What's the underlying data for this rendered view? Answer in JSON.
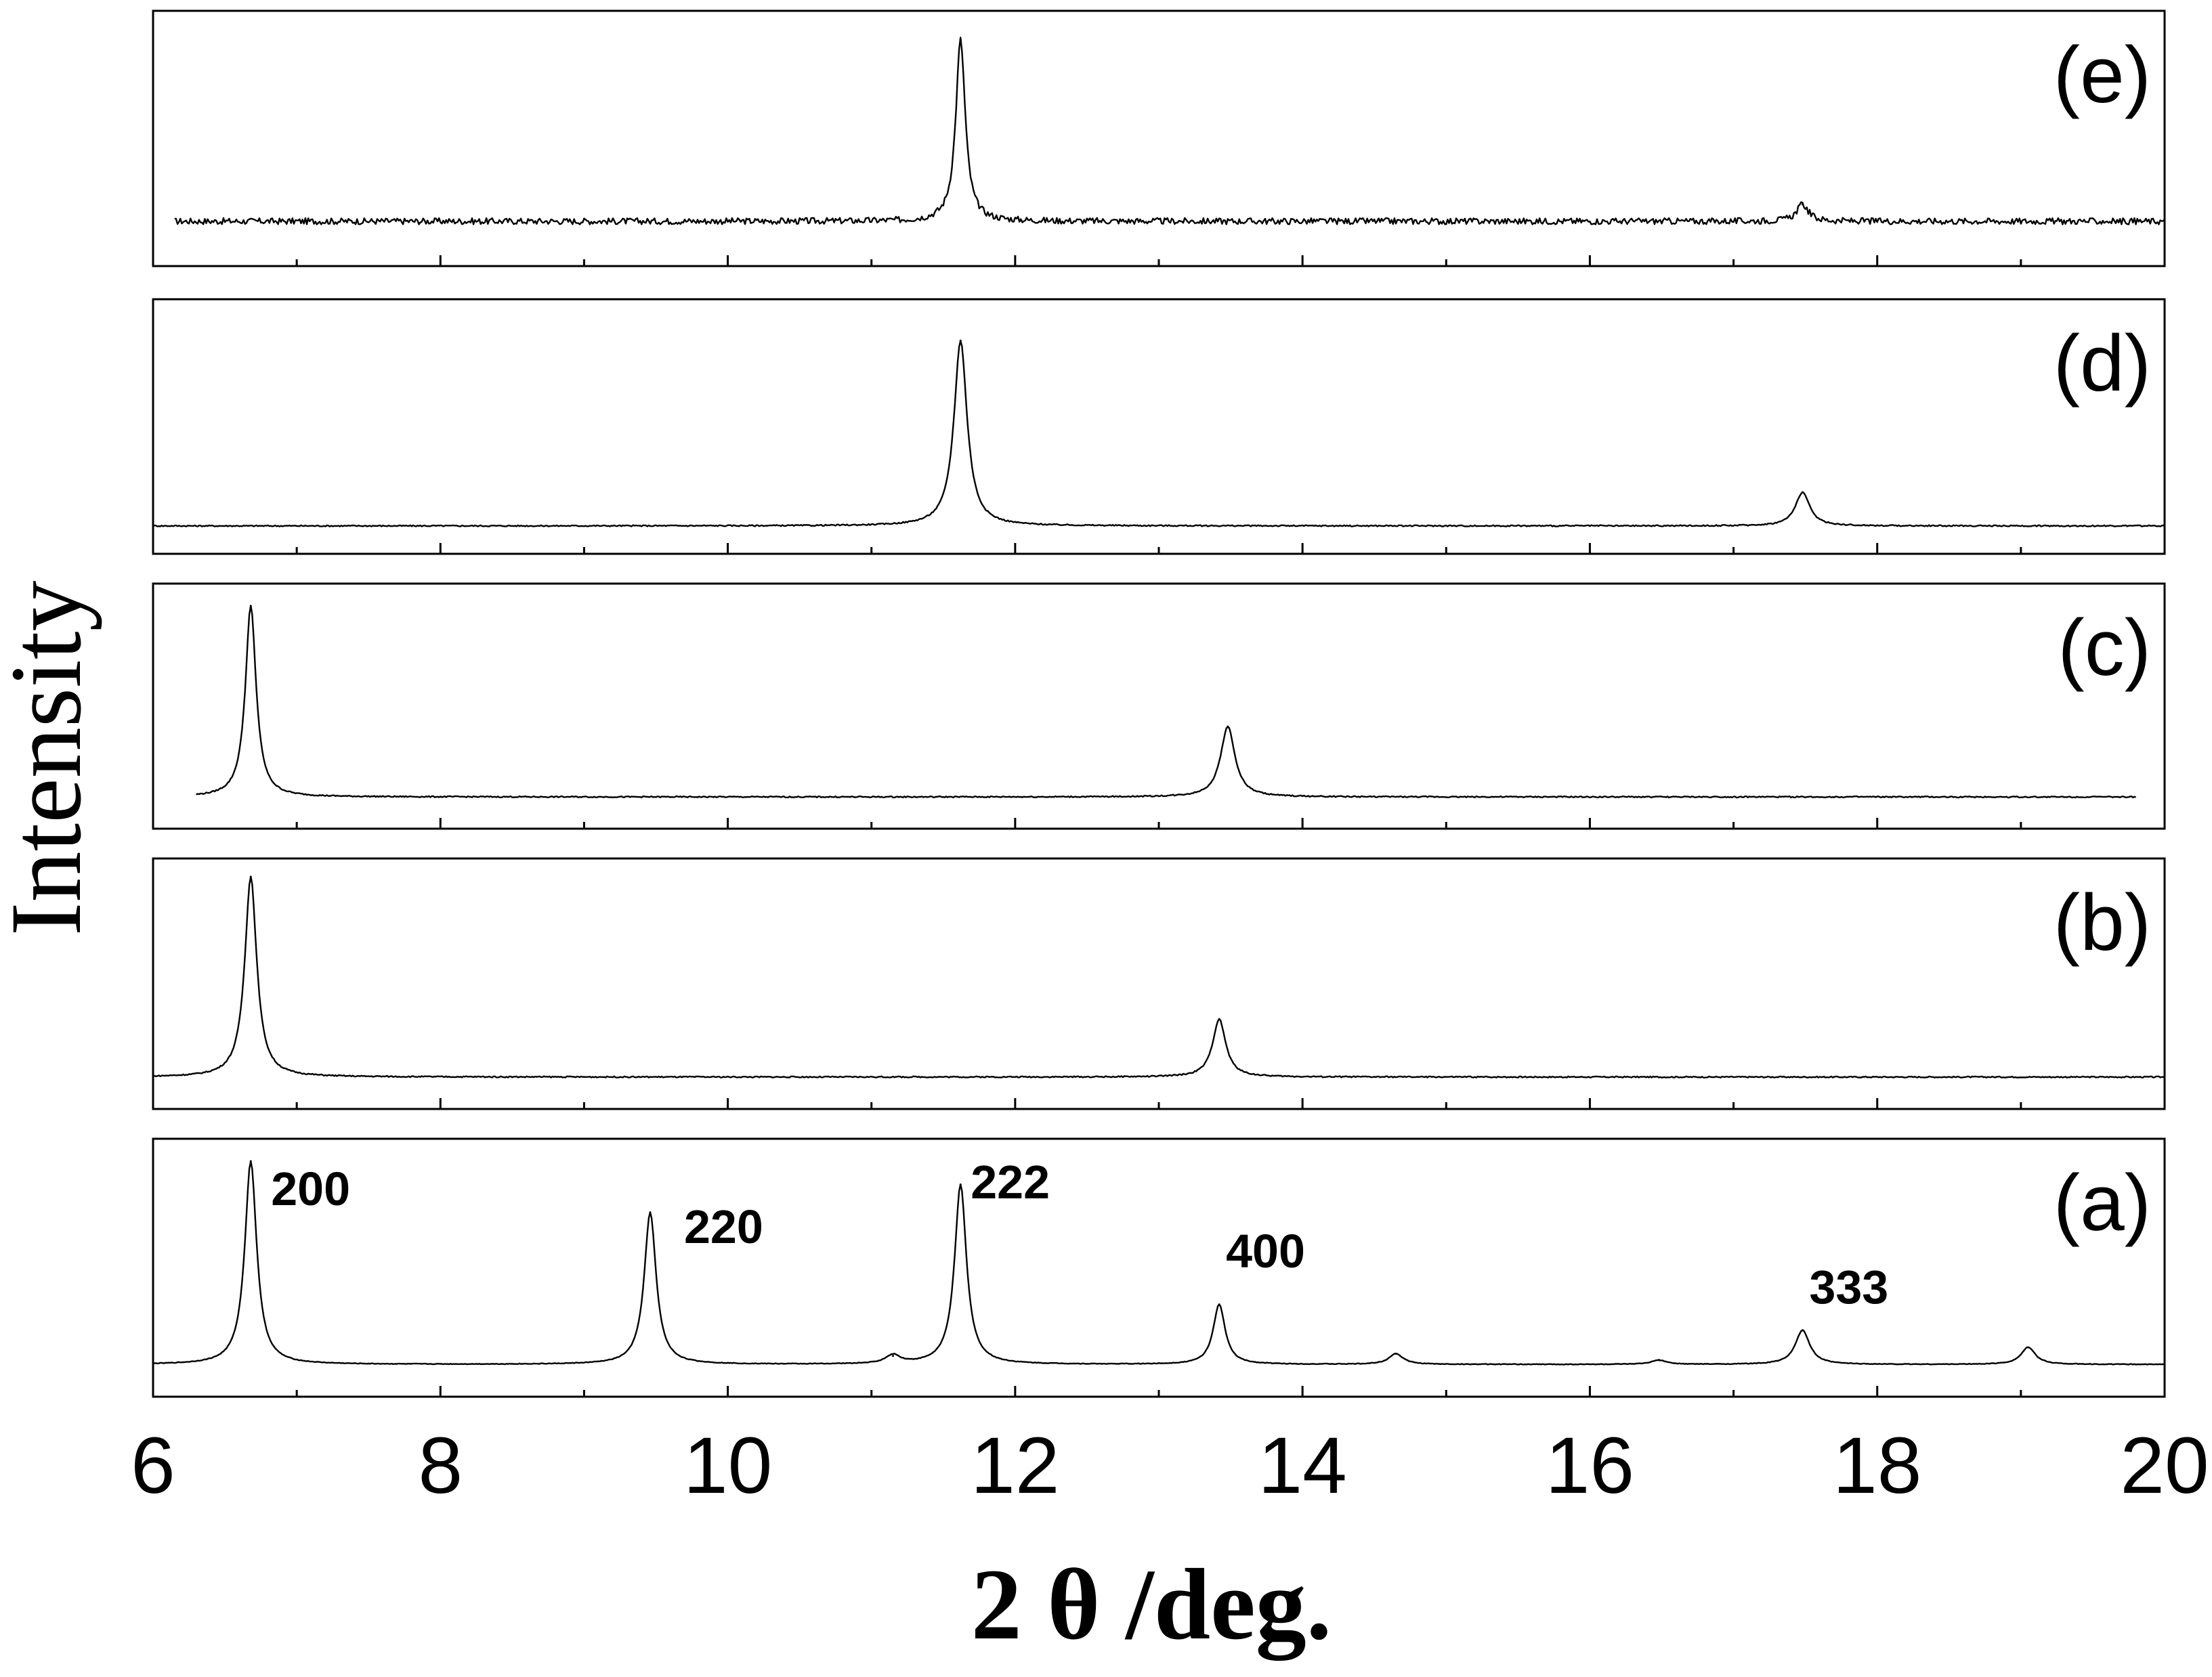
{
  "chart_data": {
    "type": "line",
    "layout": "stacked panels sharing x axis",
    "xlabel": "2 θ /deg.",
    "ylabel": "Intensity",
    "xlim": [
      6,
      20
    ],
    "xticks": [
      "6",
      "8",
      "10",
      "12",
      "14",
      "16",
      "18",
      "20"
    ],
    "yticks_shown": false,
    "panels": [
      {
        "label": "(e)",
        "x_range": [
          6.15,
          20
        ],
        "baseline": 0.1,
        "noise": 0.03,
        "peaks": [
          {
            "x": 11.62,
            "height": 0.86,
            "width": 0.04
          },
          {
            "x": 17.48,
            "height": 0.08,
            "width": 0.05
          }
        ]
      },
      {
        "label": "(d)",
        "x_range": [
          6,
          20
        ],
        "baseline": 0.02,
        "noise": 0.006,
        "peaks": [
          {
            "x": 11.62,
            "height": 0.88,
            "width": 0.055
          },
          {
            "x": 17.48,
            "height": 0.16,
            "width": 0.06
          }
        ]
      },
      {
        "label": "(c)",
        "x_range": [
          6.3,
          19.8
        ],
        "baseline": 0.04,
        "noise": 0.006,
        "peaks": [
          {
            "x": 6.68,
            "height": 0.95,
            "width": 0.045
          },
          {
            "x": 13.48,
            "height": 0.35,
            "width": 0.06
          }
        ]
      },
      {
        "label": "(b)",
        "x_range": [
          6,
          20
        ],
        "baseline": 0.04,
        "noise": 0.006,
        "peaks": [
          {
            "x": 6.68,
            "height": 0.97,
            "width": 0.05
          },
          {
            "x": 13.42,
            "height": 0.28,
            "width": 0.055
          }
        ]
      },
      {
        "label": "(a)",
        "x_range": [
          6,
          20
        ],
        "baseline": 0.04,
        "noise": 0.003,
        "peaks": [
          {
            "x": 6.68,
            "height": 0.95,
            "width": 0.05,
            "hkl": "200"
          },
          {
            "x": 9.46,
            "height": 0.71,
            "width": 0.05,
            "hkl": "220"
          },
          {
            "x": 11.15,
            "height": 0.04,
            "width": 0.06
          },
          {
            "x": 11.62,
            "height": 0.84,
            "width": 0.05,
            "hkl": "222"
          },
          {
            "x": 13.42,
            "height": 0.28,
            "width": 0.05,
            "hkl": "400"
          },
          {
            "x": 14.65,
            "height": 0.05,
            "width": 0.06
          },
          {
            "x": 16.48,
            "height": 0.02,
            "width": 0.06
          },
          {
            "x": 17.48,
            "height": 0.16,
            "width": 0.06,
            "hkl": "333"
          },
          {
            "x": 19.05,
            "height": 0.08,
            "width": 0.06
          }
        ]
      }
    ]
  }
}
